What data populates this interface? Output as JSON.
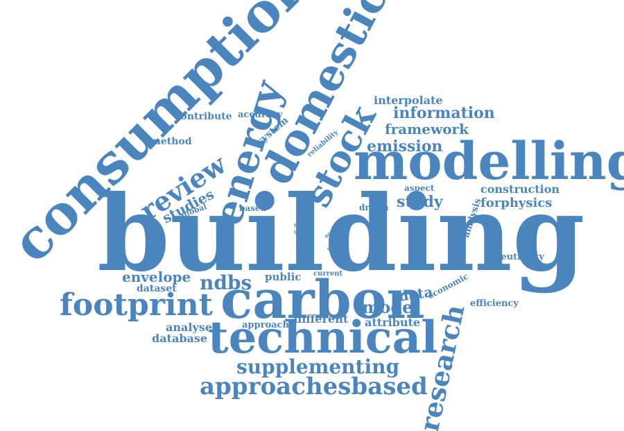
{
  "colors": {
    "word": "#4a86bd",
    "background": "#ffffff"
  },
  "words": {
    "building": "building",
    "consumption": "consumption",
    "energy": "energy",
    "domestic": "domestic",
    "stock": "stock",
    "modelling": "modelling",
    "review": "review",
    "carbon": "carbon",
    "technical": "technical",
    "research": "research",
    "footprint": "footprint",
    "approachesbased": "approachesbased",
    "supplementing": "supplementing",
    "information": "information",
    "framework": "framework",
    "emission": "emission",
    "interpolate": "interpolate",
    "studies": "studies",
    "study": "study",
    "construction": "construction",
    "forphysics": "forphysics",
    "model": "model",
    "data": "data",
    "envelope": "envelope",
    "ndbs": "ndbs",
    "public": "public",
    "database": "database",
    "analyse": "analyse",
    "dataset": "dataset",
    "different": "different",
    "attribute": "attribute",
    "approach": "approach",
    "efficiency": "efficiency",
    "economic": "economic",
    "neutrality": "neutrality",
    "analysis": "analysis",
    "aspect": "aspect",
    "driven": "driven",
    "based": "based",
    "global": "global",
    "current": "current",
    "method": "method",
    "contribute": "contribute",
    "accuracy": "accuracy",
    "system": "system",
    "reliability": "reliability",
    "type": "type",
    "goal": "goal",
    "social": "social",
    "physic": "physic"
  }
}
